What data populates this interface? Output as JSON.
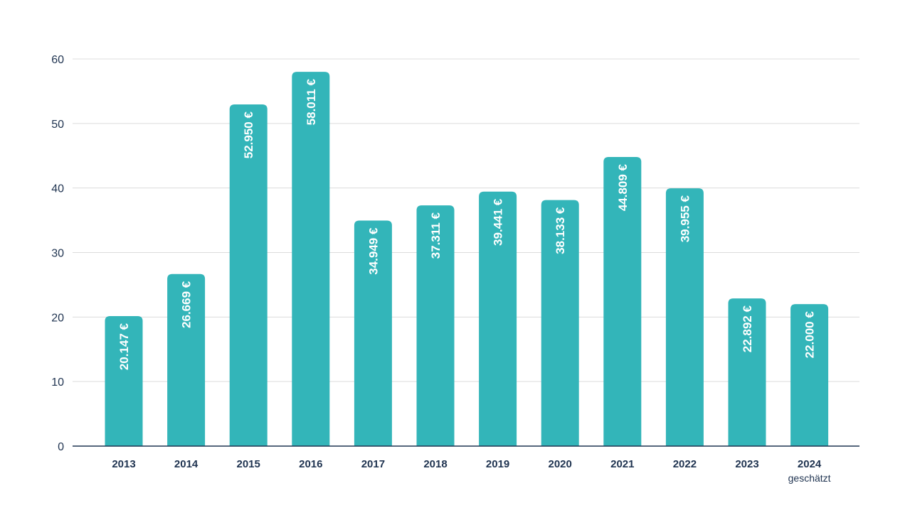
{
  "chart_data": {
    "type": "bar",
    "categories": [
      "2013",
      "2014",
      "2015",
      "2016",
      "2017",
      "2018",
      "2019",
      "2020",
      "2021",
      "2022",
      "2023",
      "2024"
    ],
    "category_sublabels": [
      "",
      "",
      "",
      "",
      "",
      "",
      "",
      "",
      "",
      "",
      "",
      "geschätzt"
    ],
    "values": [
      20.147,
      26.669,
      52.95,
      58.011,
      34.949,
      37.311,
      39.441,
      38.133,
      44.809,
      39.955,
      22.892,
      22.0
    ],
    "data_labels": [
      "20.147 €",
      "26.669 €",
      "52.950 €",
      "58.011 €",
      "34.949 €",
      "37.311 €",
      "39.441 €",
      "38.133 €",
      "44.809 €",
      "39.955 €",
      "22.892 €",
      "22.000 €"
    ],
    "yticks": [
      0,
      10,
      20,
      30,
      40,
      50,
      60
    ],
    "ylim": [
      0,
      60
    ],
    "grid": true,
    "title": "",
    "xlabel": "",
    "ylabel": "",
    "colors": {
      "bar": "#33b5b9",
      "text": "#1f3350",
      "grid": "#dcdcdc",
      "label": "#ffffff"
    }
  }
}
